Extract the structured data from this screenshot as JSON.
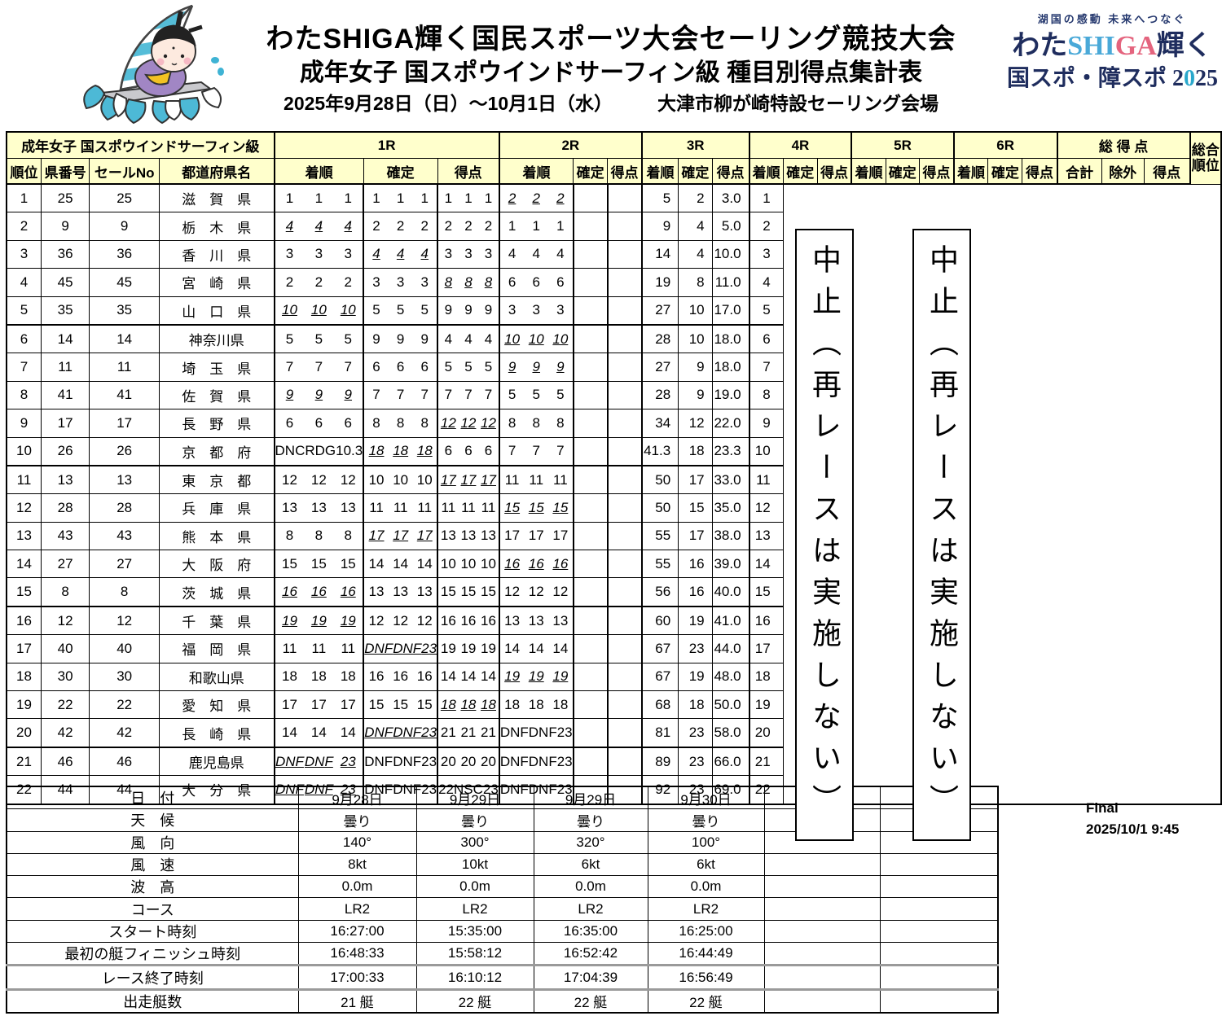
{
  "header": {
    "title1": "わたSHIGA輝く国民スポーツ大会セーリング競技大会",
    "title2": "成年女子 国スポウインドサーフィン級 種目別得点集計表",
    "date_range": "2025年9月28日（日）～10月1日（水）",
    "venue": "大津市柳が崎特設セーリング会場",
    "logo": {
      "tagline": "湖国の感動 未来へつなぐ",
      "line1_pre": "わた",
      "line1_shi": "SHI",
      "line1_ga": "GA",
      "line1_post": "輝く",
      "line2_pre": "国スポ・障スポ 2",
      "line2_zero": "0",
      "line2_post": "25",
      "navy": "#1f2d5e",
      "light_blue": "#4aa9d8",
      "pink": "#e4647e",
      "teal": "#2aa8cc"
    },
    "mascot_icon": "windsurfing-mascot"
  },
  "colors": {
    "header_bg": "#ffffcc",
    "border": "#000000",
    "gray_separator": "#9a9a9a",
    "wave_teal": "#4db9d6",
    "mascot_purple": "#a186c4"
  },
  "table": {
    "class_label": "成年女子 国スポウインドサーフィン級",
    "left_headers": [
      "順位",
      "県番号",
      "セールNo",
      "都道府県名"
    ],
    "race_headers": [
      "1R",
      "2R",
      "3R",
      "4R",
      "5R",
      "6R"
    ],
    "race_subheaders": [
      "着順",
      "確定",
      "得点"
    ],
    "total_header": "総 得 点",
    "total_subheaders": [
      "合計",
      "除外",
      "得点"
    ],
    "overall_header": "総合\n順位",
    "rows": [
      {
        "rank": "1",
        "pref_no": "25",
        "sail_no": "25",
        "prefecture": "滋　賀　県",
        "races": [
          {
            "a": "1",
            "c": "1",
            "p": "1",
            "x": false
          },
          {
            "a": "1",
            "c": "1",
            "p": "1",
            "x": false
          },
          {
            "a": "1",
            "c": "1",
            "p": "1",
            "x": false
          },
          {
            "a": "2",
            "c": "2",
            "p": "2",
            "x": true
          },
          null,
          null
        ],
        "total": "5",
        "discard": "2",
        "net": "3.0",
        "overall": "1"
      },
      {
        "rank": "2",
        "pref_no": "9",
        "sail_no": "9",
        "prefecture": "栃　木　県",
        "races": [
          {
            "a": "4",
            "c": "4",
            "p": "4",
            "x": true
          },
          {
            "a": "2",
            "c": "2",
            "p": "2",
            "x": false
          },
          {
            "a": "2",
            "c": "2",
            "p": "2",
            "x": false
          },
          {
            "a": "1",
            "c": "1",
            "p": "1",
            "x": false
          },
          null,
          null
        ],
        "total": "9",
        "discard": "4",
        "net": "5.0",
        "overall": "2"
      },
      {
        "rank": "3",
        "pref_no": "36",
        "sail_no": "36",
        "prefecture": "香　川　県",
        "races": [
          {
            "a": "3",
            "c": "3",
            "p": "3",
            "x": false
          },
          {
            "a": "4",
            "c": "4",
            "p": "4",
            "x": true
          },
          {
            "a": "3",
            "c": "3",
            "p": "3",
            "x": false
          },
          {
            "a": "4",
            "c": "4",
            "p": "4",
            "x": false
          },
          null,
          null
        ],
        "total": "14",
        "discard": "4",
        "net": "10.0",
        "overall": "3"
      },
      {
        "rank": "4",
        "pref_no": "45",
        "sail_no": "45",
        "prefecture": "宮　崎　県",
        "races": [
          {
            "a": "2",
            "c": "2",
            "p": "2",
            "x": false
          },
          {
            "a": "3",
            "c": "3",
            "p": "3",
            "x": false
          },
          {
            "a": "8",
            "c": "8",
            "p": "8",
            "x": true
          },
          {
            "a": "6",
            "c": "6",
            "p": "6",
            "x": false
          },
          null,
          null
        ],
        "total": "19",
        "discard": "8",
        "net": "11.0",
        "overall": "4"
      },
      {
        "rank": "5",
        "pref_no": "35",
        "sail_no": "35",
        "prefecture": "山　口　県",
        "races": [
          {
            "a": "10",
            "c": "10",
            "p": "10",
            "x": true
          },
          {
            "a": "5",
            "c": "5",
            "p": "5",
            "x": false
          },
          {
            "a": "9",
            "c": "9",
            "p": "9",
            "x": false
          },
          {
            "a": "3",
            "c": "3",
            "p": "3",
            "x": false
          },
          null,
          null
        ],
        "total": "27",
        "discard": "10",
        "net": "17.0",
        "overall": "5"
      },
      {
        "rank": "6",
        "pref_no": "14",
        "sail_no": "14",
        "prefecture": "神奈川県",
        "races": [
          {
            "a": "5",
            "c": "5",
            "p": "5",
            "x": false
          },
          {
            "a": "9",
            "c": "9",
            "p": "9",
            "x": false
          },
          {
            "a": "4",
            "c": "4",
            "p": "4",
            "x": false
          },
          {
            "a": "10",
            "c": "10",
            "p": "10",
            "x": true
          },
          null,
          null
        ],
        "total": "28",
        "discard": "10",
        "net": "18.0",
        "overall": "6"
      },
      {
        "rank": "7",
        "pref_no": "11",
        "sail_no": "11",
        "prefecture": "埼　玉　県",
        "races": [
          {
            "a": "7",
            "c": "7",
            "p": "7",
            "x": false
          },
          {
            "a": "6",
            "c": "6",
            "p": "6",
            "x": false
          },
          {
            "a": "5",
            "c": "5",
            "p": "5",
            "x": false
          },
          {
            "a": "9",
            "c": "9",
            "p": "9",
            "x": true
          },
          null,
          null
        ],
        "total": "27",
        "discard": "9",
        "net": "18.0",
        "overall": "7"
      },
      {
        "rank": "8",
        "pref_no": "41",
        "sail_no": "41",
        "prefecture": "佐　賀　県",
        "races": [
          {
            "a": "9",
            "c": "9",
            "p": "9",
            "x": true
          },
          {
            "a": "7",
            "c": "7",
            "p": "7",
            "x": false
          },
          {
            "a": "7",
            "c": "7",
            "p": "7",
            "x": false
          },
          {
            "a": "5",
            "c": "5",
            "p": "5",
            "x": false
          },
          null,
          null
        ],
        "total": "28",
        "discard": "9",
        "net": "19.0",
        "overall": "8"
      },
      {
        "rank": "9",
        "pref_no": "17",
        "sail_no": "17",
        "prefecture": "長　野　県",
        "races": [
          {
            "a": "6",
            "c": "6",
            "p": "6",
            "x": false
          },
          {
            "a": "8",
            "c": "8",
            "p": "8",
            "x": false
          },
          {
            "a": "12",
            "c": "12",
            "p": "12",
            "x": true
          },
          {
            "a": "8",
            "c": "8",
            "p": "8",
            "x": false
          },
          null,
          null
        ],
        "total": "34",
        "discard": "12",
        "net": "22.0",
        "overall": "9"
      },
      {
        "rank": "10",
        "pref_no": "26",
        "sail_no": "26",
        "prefecture": "京　都　府",
        "races": [
          {
            "a": "DNC",
            "c": "RDG",
            "p": "10.3",
            "x": false
          },
          {
            "a": "18",
            "c": "18",
            "p": "18",
            "x": true
          },
          {
            "a": "6",
            "c": "6",
            "p": "6",
            "x": false
          },
          {
            "a": "7",
            "c": "7",
            "p": "7",
            "x": false
          },
          null,
          null
        ],
        "total": "41.3",
        "discard": "18",
        "net": "23.3",
        "overall": "10"
      },
      {
        "rank": "11",
        "pref_no": "13",
        "sail_no": "13",
        "prefecture": "東　京　都",
        "races": [
          {
            "a": "12",
            "c": "12",
            "p": "12",
            "x": false
          },
          {
            "a": "10",
            "c": "10",
            "p": "10",
            "x": false
          },
          {
            "a": "17",
            "c": "17",
            "p": "17",
            "x": true
          },
          {
            "a": "11",
            "c": "11",
            "p": "11",
            "x": false
          },
          null,
          null
        ],
        "total": "50",
        "discard": "17",
        "net": "33.0",
        "overall": "11"
      },
      {
        "rank": "12",
        "pref_no": "28",
        "sail_no": "28",
        "prefecture": "兵　庫　県",
        "races": [
          {
            "a": "13",
            "c": "13",
            "p": "13",
            "x": false
          },
          {
            "a": "11",
            "c": "11",
            "p": "11",
            "x": false
          },
          {
            "a": "11",
            "c": "11",
            "p": "11",
            "x": false
          },
          {
            "a": "15",
            "c": "15",
            "p": "15",
            "x": true
          },
          null,
          null
        ],
        "total": "50",
        "discard": "15",
        "net": "35.0",
        "overall": "12"
      },
      {
        "rank": "13",
        "pref_no": "43",
        "sail_no": "43",
        "prefecture": "熊　本　県",
        "races": [
          {
            "a": "8",
            "c": "8",
            "p": "8",
            "x": false
          },
          {
            "a": "17",
            "c": "17",
            "p": "17",
            "x": true
          },
          {
            "a": "13",
            "c": "13",
            "p": "13",
            "x": false
          },
          {
            "a": "17",
            "c": "17",
            "p": "17",
            "x": false
          },
          null,
          null
        ],
        "total": "55",
        "discard": "17",
        "net": "38.0",
        "overall": "13"
      },
      {
        "rank": "14",
        "pref_no": "27",
        "sail_no": "27",
        "prefecture": "大　阪　府",
        "races": [
          {
            "a": "15",
            "c": "15",
            "p": "15",
            "x": false
          },
          {
            "a": "14",
            "c": "14",
            "p": "14",
            "x": false
          },
          {
            "a": "10",
            "c": "10",
            "p": "10",
            "x": false
          },
          {
            "a": "16",
            "c": "16",
            "p": "16",
            "x": true
          },
          null,
          null
        ],
        "total": "55",
        "discard": "16",
        "net": "39.0",
        "overall": "14"
      },
      {
        "rank": "15",
        "pref_no": "8",
        "sail_no": "8",
        "prefecture": "茨　城　県",
        "races": [
          {
            "a": "16",
            "c": "16",
            "p": "16",
            "x": true
          },
          {
            "a": "13",
            "c": "13",
            "p": "13",
            "x": false
          },
          {
            "a": "15",
            "c": "15",
            "p": "15",
            "x": false
          },
          {
            "a": "12",
            "c": "12",
            "p": "12",
            "x": false
          },
          null,
          null
        ],
        "total": "56",
        "discard": "16",
        "net": "40.0",
        "overall": "15"
      },
      {
        "rank": "16",
        "pref_no": "12",
        "sail_no": "12",
        "prefecture": "千　葉　県",
        "races": [
          {
            "a": "19",
            "c": "19",
            "p": "19",
            "x": true
          },
          {
            "a": "12",
            "c": "12",
            "p": "12",
            "x": false
          },
          {
            "a": "16",
            "c": "16",
            "p": "16",
            "x": false
          },
          {
            "a": "13",
            "c": "13",
            "p": "13",
            "x": false
          },
          null,
          null
        ],
        "total": "60",
        "discard": "19",
        "net": "41.0",
        "overall": "16"
      },
      {
        "rank": "17",
        "pref_no": "40",
        "sail_no": "40",
        "prefecture": "福　岡　県",
        "races": [
          {
            "a": "11",
            "c": "11",
            "p": "11",
            "x": false
          },
          {
            "a": "DNF",
            "c": "DNF",
            "p": "23",
            "x": true
          },
          {
            "a": "19",
            "c": "19",
            "p": "19",
            "x": false
          },
          {
            "a": "14",
            "c": "14",
            "p": "14",
            "x": false
          },
          null,
          null
        ],
        "total": "67",
        "discard": "23",
        "net": "44.0",
        "overall": "17"
      },
      {
        "rank": "18",
        "pref_no": "30",
        "sail_no": "30",
        "prefecture": "和歌山県",
        "races": [
          {
            "a": "18",
            "c": "18",
            "p": "18",
            "x": false
          },
          {
            "a": "16",
            "c": "16",
            "p": "16",
            "x": false
          },
          {
            "a": "14",
            "c": "14",
            "p": "14",
            "x": false
          },
          {
            "a": "19",
            "c": "19",
            "p": "19",
            "x": true
          },
          null,
          null
        ],
        "total": "67",
        "discard": "19",
        "net": "48.0",
        "overall": "18"
      },
      {
        "rank": "19",
        "pref_no": "22",
        "sail_no": "22",
        "prefecture": "愛　知　県",
        "races": [
          {
            "a": "17",
            "c": "17",
            "p": "17",
            "x": false
          },
          {
            "a": "15",
            "c": "15",
            "p": "15",
            "x": false
          },
          {
            "a": "18",
            "c": "18",
            "p": "18",
            "x": true
          },
          {
            "a": "18",
            "c": "18",
            "p": "18",
            "x": false
          },
          null,
          null
        ],
        "total": "68",
        "discard": "18",
        "net": "50.0",
        "overall": "19"
      },
      {
        "rank": "20",
        "pref_no": "42",
        "sail_no": "42",
        "prefecture": "長　崎　県",
        "races": [
          {
            "a": "14",
            "c": "14",
            "p": "14",
            "x": false
          },
          {
            "a": "DNF",
            "c": "DNF",
            "p": "23",
            "x": true
          },
          {
            "a": "21",
            "c": "21",
            "p": "21",
            "x": false
          },
          {
            "a": "DNF",
            "c": "DNF",
            "p": "23",
            "x": false
          },
          null,
          null
        ],
        "total": "81",
        "discard": "23",
        "net": "58.0",
        "overall": "20"
      },
      {
        "rank": "21",
        "pref_no": "46",
        "sail_no": "46",
        "prefecture": "鹿児島県",
        "races": [
          {
            "a": "DNF",
            "c": "DNF",
            "p": "23",
            "x": true
          },
          {
            "a": "DNF",
            "c": "DNF",
            "p": "23",
            "x": false
          },
          {
            "a": "20",
            "c": "20",
            "p": "20",
            "x": false
          },
          {
            "a": "DNF",
            "c": "DNF",
            "p": "23",
            "x": false
          },
          null,
          null
        ],
        "total": "89",
        "discard": "23",
        "net": "66.0",
        "overall": "21"
      },
      {
        "rank": "22",
        "pref_no": "44",
        "sail_no": "44",
        "prefecture": "大　分　県",
        "races": [
          {
            "a": "DNF",
            "c": "DNF",
            "p": "23",
            "x": true
          },
          {
            "a": "DNF",
            "c": "DNF",
            "p": "23",
            "x": false
          },
          {
            "a": "22",
            "c": "NSC",
            "p": "23",
            "x": false
          },
          {
            "a": "DNF",
            "c": "DNF",
            "p": "23",
            "x": false
          },
          null,
          null
        ],
        "total": "92",
        "discard": "23",
        "net": "69.0",
        "overall": "22"
      }
    ]
  },
  "cancel_notice": "中止（再レースは実施しない）",
  "conditions": {
    "rows": [
      {
        "label": "日　付",
        "values": [
          "9月28日",
          "9月29日",
          "9月29日",
          "9月30日",
          "",
          ""
        ]
      },
      {
        "label": "天　候",
        "values": [
          "曇り",
          "曇り",
          "曇り",
          "曇り",
          "",
          ""
        ]
      },
      {
        "label": "風　向",
        "values": [
          "140°",
          "300°",
          "320°",
          "100°",
          "",
          ""
        ]
      },
      {
        "label": "風　速",
        "values": [
          "8kt",
          "10kt",
          "6kt",
          "6kt",
          "",
          ""
        ]
      },
      {
        "label": "波　高",
        "values": [
          "0.0m",
          "0.0m",
          "0.0m",
          "0.0m",
          "",
          ""
        ]
      },
      {
        "label": "コース",
        "values": [
          "LR2",
          "LR2",
          "LR2",
          "LR2",
          "",
          ""
        ]
      },
      {
        "label": "スタート時刻",
        "values": [
          "16:27:00",
          "15:35:00",
          "16:35:00",
          "16:25:00",
          "",
          ""
        ]
      },
      {
        "label": "最初の艇フィニッシュ時刻",
        "values": [
          "16:48:33",
          "15:58:12",
          "16:52:42",
          "16:44:49",
          "",
          ""
        ]
      },
      {
        "label": "レース終了時刻",
        "values": [
          "17:00:33",
          "16:10:12",
          "17:04:39",
          "16:56:49",
          "",
          ""
        ]
      },
      {
        "label": "出走艇数",
        "values": [
          "21 艇",
          "22 艇",
          "22 艇",
          "22 艇",
          "",
          ""
        ]
      }
    ]
  },
  "footer": {
    "status": "Final",
    "timestamp": "2025/10/1 9:45"
  }
}
